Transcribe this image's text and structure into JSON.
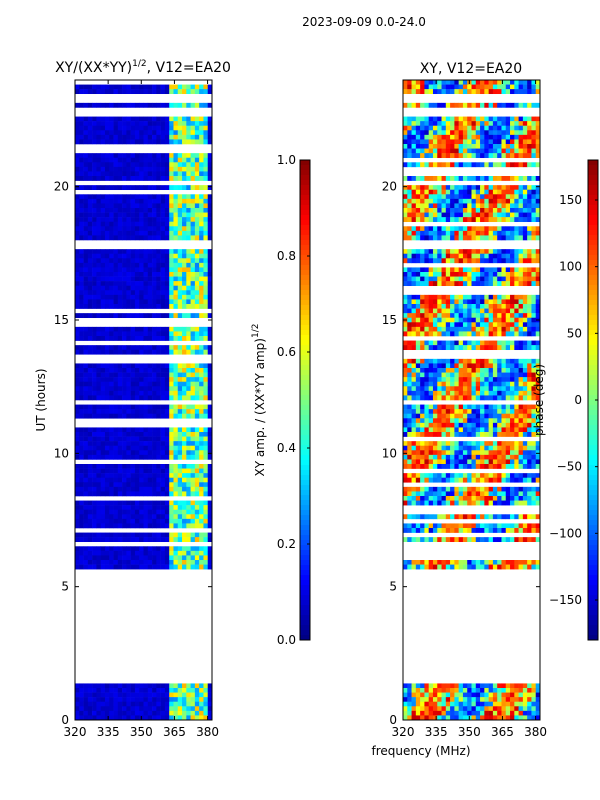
{
  "figure": {
    "suptitle": "2023-09-09 0.0-24.0"
  },
  "colors": {
    "jet": [
      "#00007f",
      "#0000ff",
      "#007fff",
      "#00ffff",
      "#7fff7f",
      "#ffff00",
      "#ff7f00",
      "#ff0000",
      "#7f0000"
    ],
    "background_band": "#00008f"
  },
  "chart_data": [
    {
      "type": "heatmap",
      "title": "XY/(XX*YY)^(1/2), V12=EA20",
      "title_main": "XY/(XX*YY)",
      "title_exp": "1/2",
      "title_rest": ", V12=EA20",
      "xlabel": "",
      "ylabel": "UT (hours)",
      "xlim": [
        320,
        382
      ],
      "ylim": [
        0,
        24
      ],
      "xticks": [
        320,
        335,
        350,
        365,
        380
      ],
      "yticks": [
        0,
        5,
        10,
        15,
        20
      ],
      "data_gaps_hours": [
        [
          1.35,
          5.7
        ],
        [
          11.85,
          12.0
        ],
        [
          17.7,
          17.95
        ],
        [
          22.7,
          22.95
        ]
      ],
      "bright_band_mhz": [
        362,
        380
      ],
      "colorbar": {
        "label": "XY amp. / (XX*YY amp)^(1/2)",
        "label_main": "XY amp. / (XX*YY amp)",
        "label_exp": "1/2",
        "range": [
          0.0,
          1.0
        ],
        "ticks": [
          "0.0",
          "0.2",
          "0.4",
          "0.6",
          "0.8",
          "1.0"
        ]
      }
    },
    {
      "type": "heatmap",
      "title": "XY, V12=EA20",
      "xlabel": "frequency (MHz)",
      "ylabel": "",
      "xlim": [
        320,
        382
      ],
      "ylim": [
        0,
        24
      ],
      "xticks": [
        320,
        335,
        350,
        365,
        380
      ],
      "yticks": [
        0,
        5,
        10,
        15,
        20
      ],
      "data_gaps_hours": [
        [
          1.35,
          5.7
        ],
        [
          11.85,
          12.0
        ],
        [
          17.7,
          17.95
        ],
        [
          22.7,
          22.95
        ]
      ],
      "colorbar": {
        "label": "phase (deg)",
        "range": [
          -180,
          180
        ],
        "ticks": [
          "−150",
          "−100",
          "−50",
          "0",
          "50",
          "100",
          "150"
        ]
      }
    }
  ]
}
